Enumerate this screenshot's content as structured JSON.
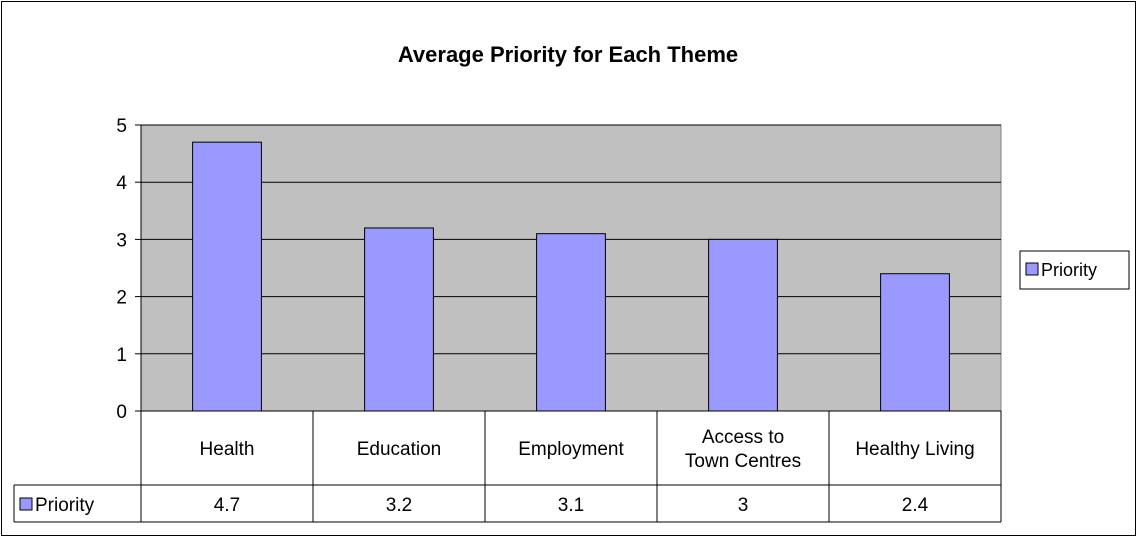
{
  "chart_data": {
    "type": "bar",
    "title": "Average Priority for Each Theme",
    "categories": [
      "Health",
      "Education",
      "Employment",
      "Access to Town Centres",
      "Healthy Living"
    ],
    "category_label_lines": [
      [
        "Health"
      ],
      [
        "Education"
      ],
      [
        "Employment"
      ],
      [
        "Access to",
        "Town Centres"
      ],
      [
        "Healthy Living"
      ]
    ],
    "series": [
      {
        "name": "Priority",
        "values": [
          4.7,
          3.2,
          3.1,
          3,
          2.4
        ],
        "color": "#9999ff"
      }
    ],
    "data_table_values": [
      "4.7",
      "3.2",
      "3.1",
      "3",
      "2.4"
    ],
    "ylim": [
      0,
      5
    ],
    "yticks": [
      0,
      1,
      2,
      3,
      4,
      5
    ],
    "grid": true,
    "plot_background": "#c0c0c0",
    "legend": {
      "position": "right",
      "label": "Priority"
    },
    "data_table": true
  }
}
